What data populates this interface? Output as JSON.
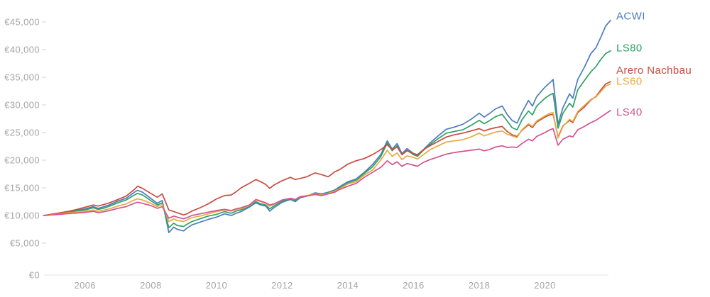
{
  "chart_data": {
    "type": "line",
    "title": "",
    "currency": "EUR",
    "grid": false,
    "legend_position": "right-of-line-ends",
    "x_axis": {
      "range": [
        2004.75,
        2022.0
      ],
      "ticks": [
        2006,
        2008,
        2010,
        2012,
        2014,
        2016,
        2018,
        2020
      ],
      "tick_labels": [
        "2006",
        "2008",
        "2010",
        "2012",
        "2014",
        "2016",
        "2018",
        "2020"
      ]
    },
    "y_axis": {
      "range": [
        0,
        45000
      ],
      "ticks": [
        0,
        5000,
        10000,
        15000,
        20000,
        25000,
        30000,
        35000,
        40000,
        45000
      ],
      "tick_labels": [
        "€0",
        "€5,000",
        "€10,000",
        "€15,000",
        "€20,000",
        "€25,000",
        "€30,000",
        "€35,000",
        "€40,000",
        "€45,000"
      ]
    },
    "x": [
      2004.75,
      2005,
      2005.25,
      2005.5,
      2005.75,
      2006,
      2006.25,
      2006.4,
      2006.55,
      2006.75,
      2007,
      2007.25,
      2007.5,
      2007.6,
      2007.75,
      2008,
      2008.2,
      2008.35,
      2008.55,
      2008.7,
      2008.8,
      2009,
      2009.1,
      2009.25,
      2009.5,
      2009.75,
      2010,
      2010.25,
      2010.45,
      2010.6,
      2010.75,
      2011,
      2011.2,
      2011.35,
      2011.5,
      2011.62,
      2011.75,
      2012,
      2012.25,
      2012.4,
      2012.55,
      2012.75,
      2013,
      2013.2,
      2013.4,
      2013.6,
      2013.75,
      2014,
      2014.25,
      2014.5,
      2014.75,
      2015,
      2015.2,
      2015.35,
      2015.5,
      2015.65,
      2015.8,
      2016,
      2016.12,
      2016.3,
      2016.5,
      2016.75,
      2017,
      2017.25,
      2017.5,
      2017.75,
      2018,
      2018.15,
      2018.3,
      2018.5,
      2018.7,
      2018.85,
      2019,
      2019.15,
      2019.3,
      2019.5,
      2019.62,
      2019.75,
      2020,
      2020.15,
      2020.25,
      2020.4,
      2020.55,
      2020.75,
      2020.85,
      2021,
      2021.2,
      2021.4,
      2021.55,
      2021.7,
      2021.85,
      2022
    ],
    "series": [
      {
        "name": "ACWI",
        "color": "#4d7cc0",
        "values": [
          10000,
          10250,
          10450,
          10700,
          10950,
          11200,
          11600,
          11300,
          11550,
          11950,
          12600,
          13100,
          14200,
          14550,
          14200,
          13100,
          12200,
          12700,
          6900,
          7900,
          7500,
          7200,
          7700,
          8300,
          8800,
          9300,
          9700,
          10300,
          10000,
          10400,
          10700,
          11500,
          12300,
          11900,
          11700,
          10800,
          11400,
          12400,
          12900,
          12500,
          13200,
          13500,
          14100,
          13900,
          14200,
          14600,
          15200,
          16100,
          16600,
          17800,
          19200,
          21000,
          23500,
          22000,
          23000,
          21200,
          22100,
          21200,
          20800,
          21900,
          23100,
          24400,
          25600,
          26000,
          26500,
          27400,
          28500,
          27800,
          28400,
          29300,
          29800,
          28300,
          27200,
          26700,
          28600,
          30800,
          29800,
          31500,
          33200,
          34000,
          34600,
          26500,
          29500,
          32000,
          31200,
          34600,
          36800,
          39300,
          40300,
          42200,
          44300,
          45300
        ]
      },
      {
        "name": "LS80",
        "color": "#2fa065",
        "values": [
          10000,
          10200,
          10400,
          10600,
          10850,
          11000,
          11400,
          11100,
          11300,
          11700,
          12300,
          12800,
          13700,
          14000,
          13700,
          12700,
          11900,
          12300,
          7800,
          8600,
          8200,
          8000,
          8400,
          8900,
          9400,
          9900,
          10200,
          10700,
          10400,
          10800,
          11000,
          11700,
          12500,
          12100,
          11900,
          11200,
          11700,
          12600,
          13000,
          12700,
          13300,
          13500,
          14000,
          13800,
          14100,
          14500,
          15000,
          15900,
          16400,
          17600,
          18800,
          20600,
          23100,
          21700,
          22600,
          21000,
          21800,
          21000,
          20700,
          21800,
          22800,
          23900,
          24900,
          25200,
          25500,
          26300,
          27200,
          26600,
          27100,
          27900,
          28300,
          27100,
          25900,
          25500,
          27300,
          28900,
          28200,
          29800,
          31200,
          31800,
          32100,
          25800,
          28500,
          30300,
          29600,
          32700,
          34400,
          36000,
          36900,
          38200,
          39300,
          39800
        ]
      },
      {
        "name": "Arero Nachbau",
        "color": "#c94b40",
        "values": [
          10000,
          10250,
          10500,
          10750,
          11100,
          11500,
          11900,
          11700,
          11950,
          12300,
          12900,
          13500,
          14700,
          15300,
          14900,
          14000,
          13300,
          13900,
          11000,
          10700,
          10500,
          10100,
          10300,
          10800,
          11400,
          12100,
          13000,
          13600,
          13700,
          14300,
          15000,
          15800,
          16500,
          16100,
          15600,
          14900,
          15500,
          16300,
          16900,
          16500,
          16700,
          17000,
          17700,
          17400,
          17000,
          17900,
          18300,
          19300,
          19900,
          20300,
          21000,
          21900,
          22800,
          21900,
          22400,
          21000,
          21700,
          21200,
          21000,
          21900,
          22600,
          23400,
          24200,
          24600,
          24900,
          25300,
          25700,
          25300,
          25600,
          25900,
          26100,
          25200,
          24600,
          24300,
          25400,
          26400,
          25900,
          26900,
          27800,
          28200,
          28300,
          24200,
          26200,
          27200,
          26800,
          28600,
          29600,
          30900,
          31500,
          32700,
          33800,
          34200
        ]
      },
      {
        "name": "LS60",
        "color": "#e5ab40",
        "values": [
          10000,
          10150,
          10300,
          10500,
          10600,
          10750,
          11000,
          10750,
          10950,
          11200,
          11700,
          12100,
          12800,
          13000,
          12800,
          12200,
          11600,
          12000,
          8900,
          9400,
          9100,
          8900,
          9200,
          9600,
          9900,
          10300,
          10700,
          11000,
          10800,
          11100,
          11200,
          11800,
          12800,
          12500,
          12200,
          11700,
          12000,
          12800,
          13100,
          12900,
          13400,
          13600,
          13900,
          13700,
          14000,
          14400,
          14850,
          15700,
          16100,
          17300,
          18200,
          20000,
          21800,
          20700,
          21300,
          20100,
          20800,
          20500,
          20200,
          21000,
          21900,
          22600,
          23300,
          23500,
          23700,
          24200,
          24900,
          24400,
          24700,
          25100,
          25300,
          24700,
          24400,
          24100,
          25500,
          26600,
          26100,
          27100,
          28000,
          28500,
          28600,
          24000,
          26100,
          27400,
          27000,
          28800,
          29900,
          31000,
          31400,
          32400,
          33400,
          33800
        ]
      },
      {
        "name": "LS40",
        "color": "#d4538f",
        "values": [
          10000,
          10100,
          10200,
          10350,
          10450,
          10550,
          10750,
          10500,
          10650,
          10900,
          11300,
          11600,
          12200,
          12400,
          12200,
          11800,
          11300,
          11600,
          9500,
          9900,
          9700,
          9400,
          9600,
          10000,
          10300,
          10600,
          10900,
          11100,
          10900,
          11200,
          11400,
          11900,
          12900,
          12600,
          12300,
          11900,
          12100,
          12800,
          13100,
          12900,
          13400,
          13500,
          13800,
          13600,
          13900,
          14200,
          14700,
          15300,
          15800,
          16900,
          17800,
          18700,
          19900,
          19200,
          19700,
          18900,
          19400,
          19100,
          18900,
          19600,
          20100,
          20600,
          21100,
          21400,
          21600,
          21800,
          22000,
          21700,
          21900,
          22400,
          22600,
          22300,
          22400,
          22300,
          23000,
          23800,
          23500,
          24300,
          25000,
          25500,
          25700,
          22700,
          23800,
          24400,
          24200,
          25500,
          26100,
          26800,
          27200,
          27800,
          28400,
          29000
        ]
      }
    ],
    "colors": {
      "axis_text": "#a5a5a5",
      "axis_line": "#e3e3e3",
      "tick_mark": "#d9d9d9",
      "background": "#ffffff"
    }
  }
}
